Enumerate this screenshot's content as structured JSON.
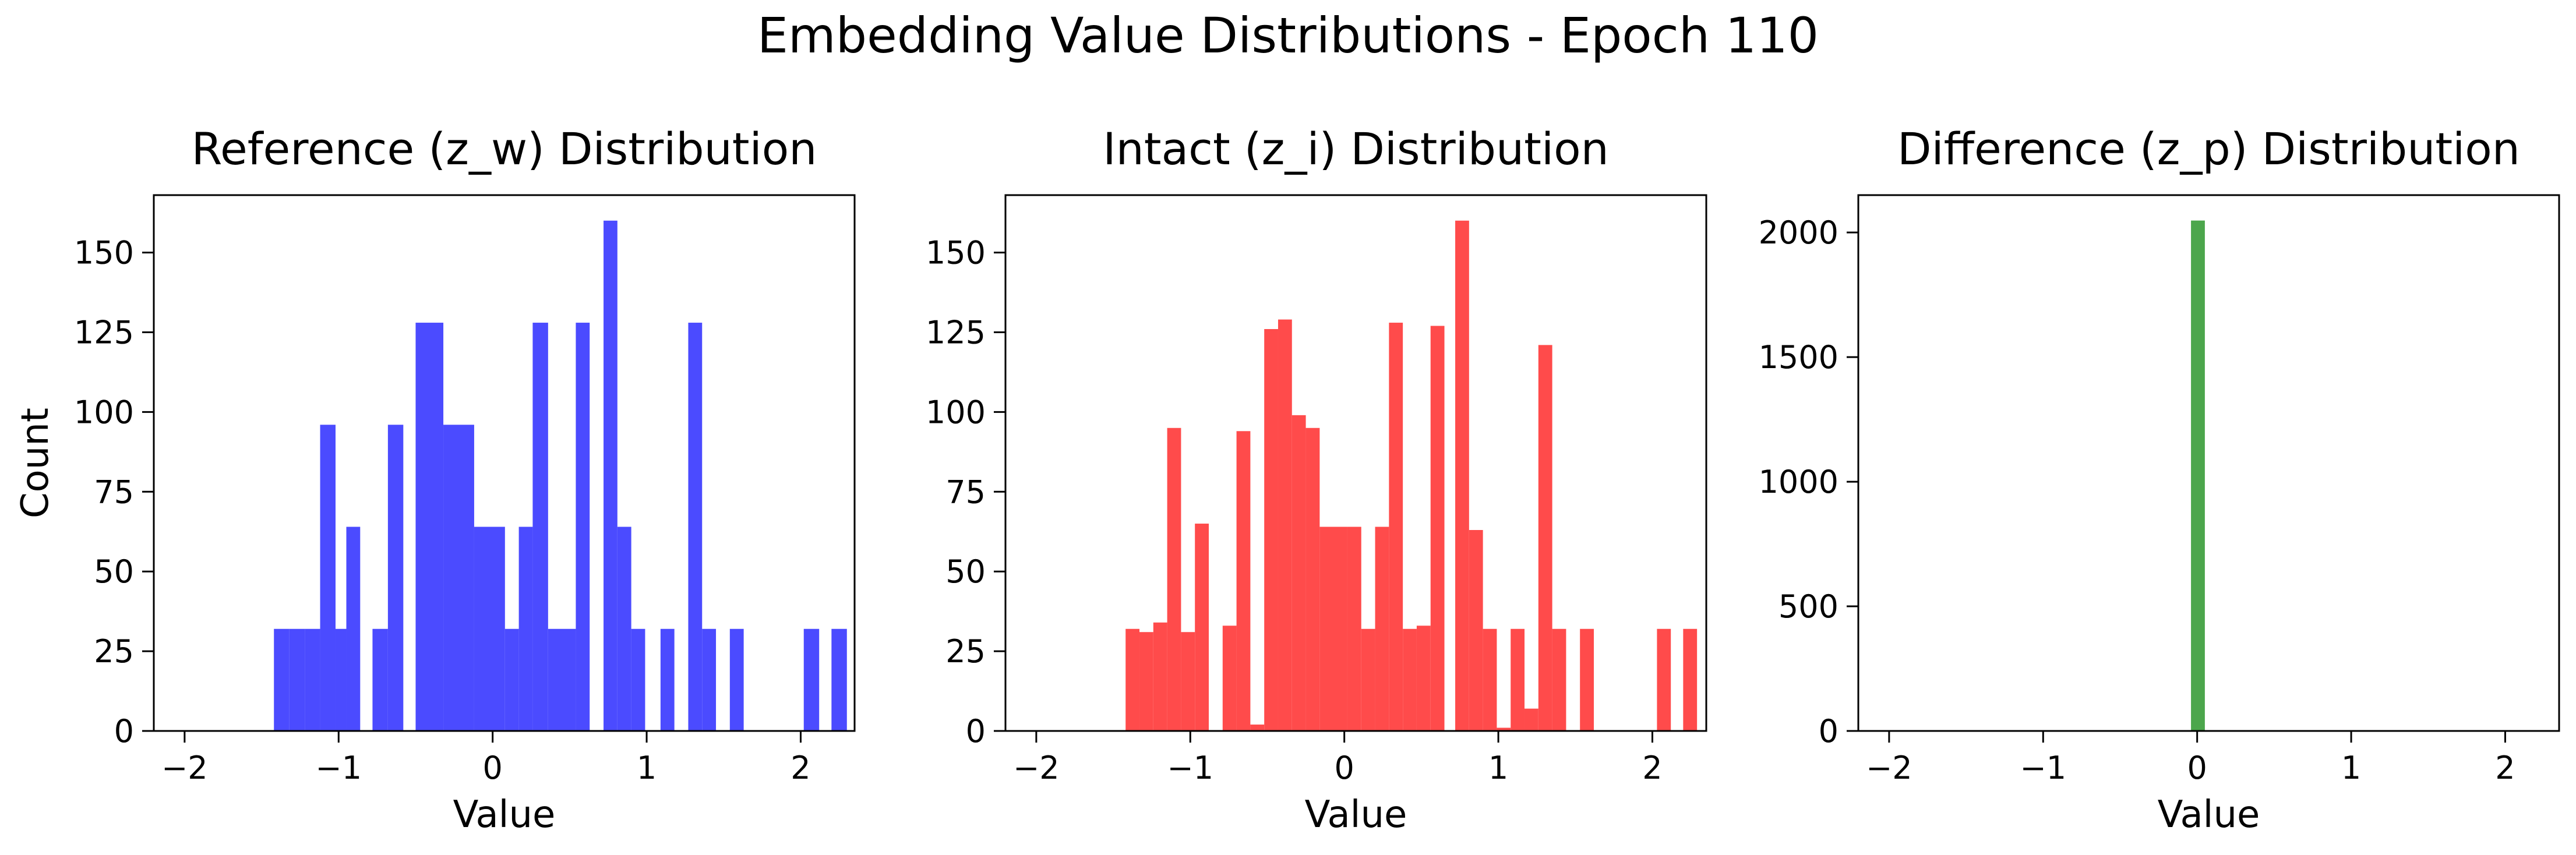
{
  "figure": {
    "title": "Embedding Value Distributions - Epoch 110"
  },
  "chart_data": [
    {
      "type": "bar",
      "title": "Reference (z_w) Distribution",
      "xlabel": "Value",
      "ylabel": "Count",
      "xlim": [
        -2.2,
        2.35
      ],
      "ylim": [
        0,
        168
      ],
      "xticks": [
        -2,
        -1,
        0,
        1,
        2
      ],
      "xtick_labels": [
        "−2",
        "−1",
        "0",
        "1",
        "2"
      ],
      "yticks": [
        0,
        25,
        50,
        75,
        100,
        125,
        150
      ],
      "ytick_labels": [
        "0",
        "25",
        "50",
        "75",
        "100",
        "125",
        "150"
      ],
      "color": "#4b4bff",
      "bins": [
        {
          "x0": -1.42,
          "x1": -1.32,
          "count": 32
        },
        {
          "x0": -1.32,
          "x1": -1.22,
          "count": 32
        },
        {
          "x0": -1.22,
          "x1": -1.12,
          "count": 32
        },
        {
          "x0": -1.12,
          "x1": -1.02,
          "count": 96
        },
        {
          "x0": -1.02,
          "x1": -0.95,
          "count": 32
        },
        {
          "x0": -0.95,
          "x1": -0.86,
          "count": 64
        },
        {
          "x0": -0.78,
          "x1": -0.68,
          "count": 32
        },
        {
          "x0": -0.68,
          "x1": -0.58,
          "count": 96
        },
        {
          "x0": -0.5,
          "x1": -0.32,
          "count": 128
        },
        {
          "x0": -0.32,
          "x1": -0.12,
          "count": 96
        },
        {
          "x0": -0.12,
          "x1": 0.08,
          "count": 64
        },
        {
          "x0": 0.08,
          "x1": 0.17,
          "count": 32
        },
        {
          "x0": 0.17,
          "x1": 0.26,
          "count": 64
        },
        {
          "x0": 0.26,
          "x1": 0.36,
          "count": 128
        },
        {
          "x0": 0.36,
          "x1": 0.54,
          "count": 32
        },
        {
          "x0": 0.54,
          "x1": 0.63,
          "count": 128
        },
        {
          "x0": 0.72,
          "x1": 0.81,
          "count": 160
        },
        {
          "x0": 0.81,
          "x1": 0.9,
          "count": 64
        },
        {
          "x0": 0.9,
          "x1": 0.99,
          "count": 32
        },
        {
          "x0": 1.09,
          "x1": 1.18,
          "count": 32
        },
        {
          "x0": 1.27,
          "x1": 1.36,
          "count": 128
        },
        {
          "x0": 1.36,
          "x1": 1.45,
          "count": 32
        },
        {
          "x0": 1.54,
          "x1": 1.63,
          "count": 32
        },
        {
          "x0": 2.02,
          "x1": 2.12,
          "count": 32
        },
        {
          "x0": 2.2,
          "x1": 2.3,
          "count": 32
        }
      ]
    },
    {
      "type": "bar",
      "title": "Intact (z_i) Distribution",
      "xlabel": "Value",
      "ylabel": "",
      "xlim": [
        -2.2,
        2.35
      ],
      "ylim": [
        0,
        168
      ],
      "xticks": [
        -2,
        -1,
        0,
        1,
        2
      ],
      "xtick_labels": [
        "−2",
        "−1",
        "0",
        "1",
        "2"
      ],
      "yticks": [
        0,
        25,
        50,
        75,
        100,
        125,
        150
      ],
      "ytick_labels": [
        "0",
        "25",
        "50",
        "75",
        "100",
        "125",
        "150"
      ],
      "color": "#ff4b4b",
      "bins": [
        {
          "x0": -1.42,
          "x1": -1.33,
          "count": 32
        },
        {
          "x0": -1.33,
          "x1": -1.24,
          "count": 31
        },
        {
          "x0": -1.24,
          "x1": -1.15,
          "count": 34
        },
        {
          "x0": -1.15,
          "x1": -1.06,
          "count": 95
        },
        {
          "x0": -1.06,
          "x1": -0.97,
          "count": 31
        },
        {
          "x0": -0.97,
          "x1": -0.88,
          "count": 65
        },
        {
          "x0": -0.79,
          "x1": -0.7,
          "count": 33
        },
        {
          "x0": -0.7,
          "x1": -0.61,
          "count": 94
        },
        {
          "x0": -0.61,
          "x1": -0.52,
          "count": 2
        },
        {
          "x0": -0.52,
          "x1": -0.43,
          "count": 126
        },
        {
          "x0": -0.43,
          "x1": -0.34,
          "count": 129
        },
        {
          "x0": -0.34,
          "x1": -0.25,
          "count": 99
        },
        {
          "x0": -0.25,
          "x1": -0.16,
          "count": 95
        },
        {
          "x0": -0.16,
          "x1": 0.02,
          "count": 64
        },
        {
          "x0": 0.02,
          "x1": 0.11,
          "count": 64
        },
        {
          "x0": 0.11,
          "x1": 0.2,
          "count": 32
        },
        {
          "x0": 0.2,
          "x1": 0.29,
          "count": 64
        },
        {
          "x0": 0.29,
          "x1": 0.38,
          "count": 128
        },
        {
          "x0": 0.38,
          "x1": 0.47,
          "count": 32
        },
        {
          "x0": 0.47,
          "x1": 0.56,
          "count": 33
        },
        {
          "x0": 0.56,
          "x1": 0.65,
          "count": 127
        },
        {
          "x0": 0.72,
          "x1": 0.81,
          "count": 160
        },
        {
          "x0": 0.81,
          "x1": 0.9,
          "count": 63
        },
        {
          "x0": 0.9,
          "x1": 0.99,
          "count": 32
        },
        {
          "x0": 0.99,
          "x1": 1.08,
          "count": 1
        },
        {
          "x0": 1.08,
          "x1": 1.17,
          "count": 32
        },
        {
          "x0": 1.17,
          "x1": 1.26,
          "count": 7
        },
        {
          "x0": 1.26,
          "x1": 1.35,
          "count": 121
        },
        {
          "x0": 1.35,
          "x1": 1.44,
          "count": 32
        },
        {
          "x0": 1.53,
          "x1": 1.62,
          "count": 32
        },
        {
          "x0": 2.03,
          "x1": 2.12,
          "count": 32
        },
        {
          "x0": 2.2,
          "x1": 2.29,
          "count": 32
        }
      ]
    },
    {
      "type": "bar",
      "title": "Difference (z_p) Distribution",
      "xlabel": "Value",
      "ylabel": "",
      "xlim": [
        -2.2,
        2.35
      ],
      "ylim": [
        0,
        2150
      ],
      "xticks": [
        -2,
        -1,
        0,
        1,
        2
      ],
      "xtick_labels": [
        "−2",
        "−1",
        "0",
        "1",
        "2"
      ],
      "yticks": [
        0,
        500,
        1000,
        1500,
        2000
      ],
      "ytick_labels": [
        "0",
        "500",
        "1000",
        "1500",
        "2000"
      ],
      "color": "#4ca64c",
      "bins": [
        {
          "x0": -0.04,
          "x1": 0.05,
          "count": 2048
        }
      ]
    }
  ]
}
